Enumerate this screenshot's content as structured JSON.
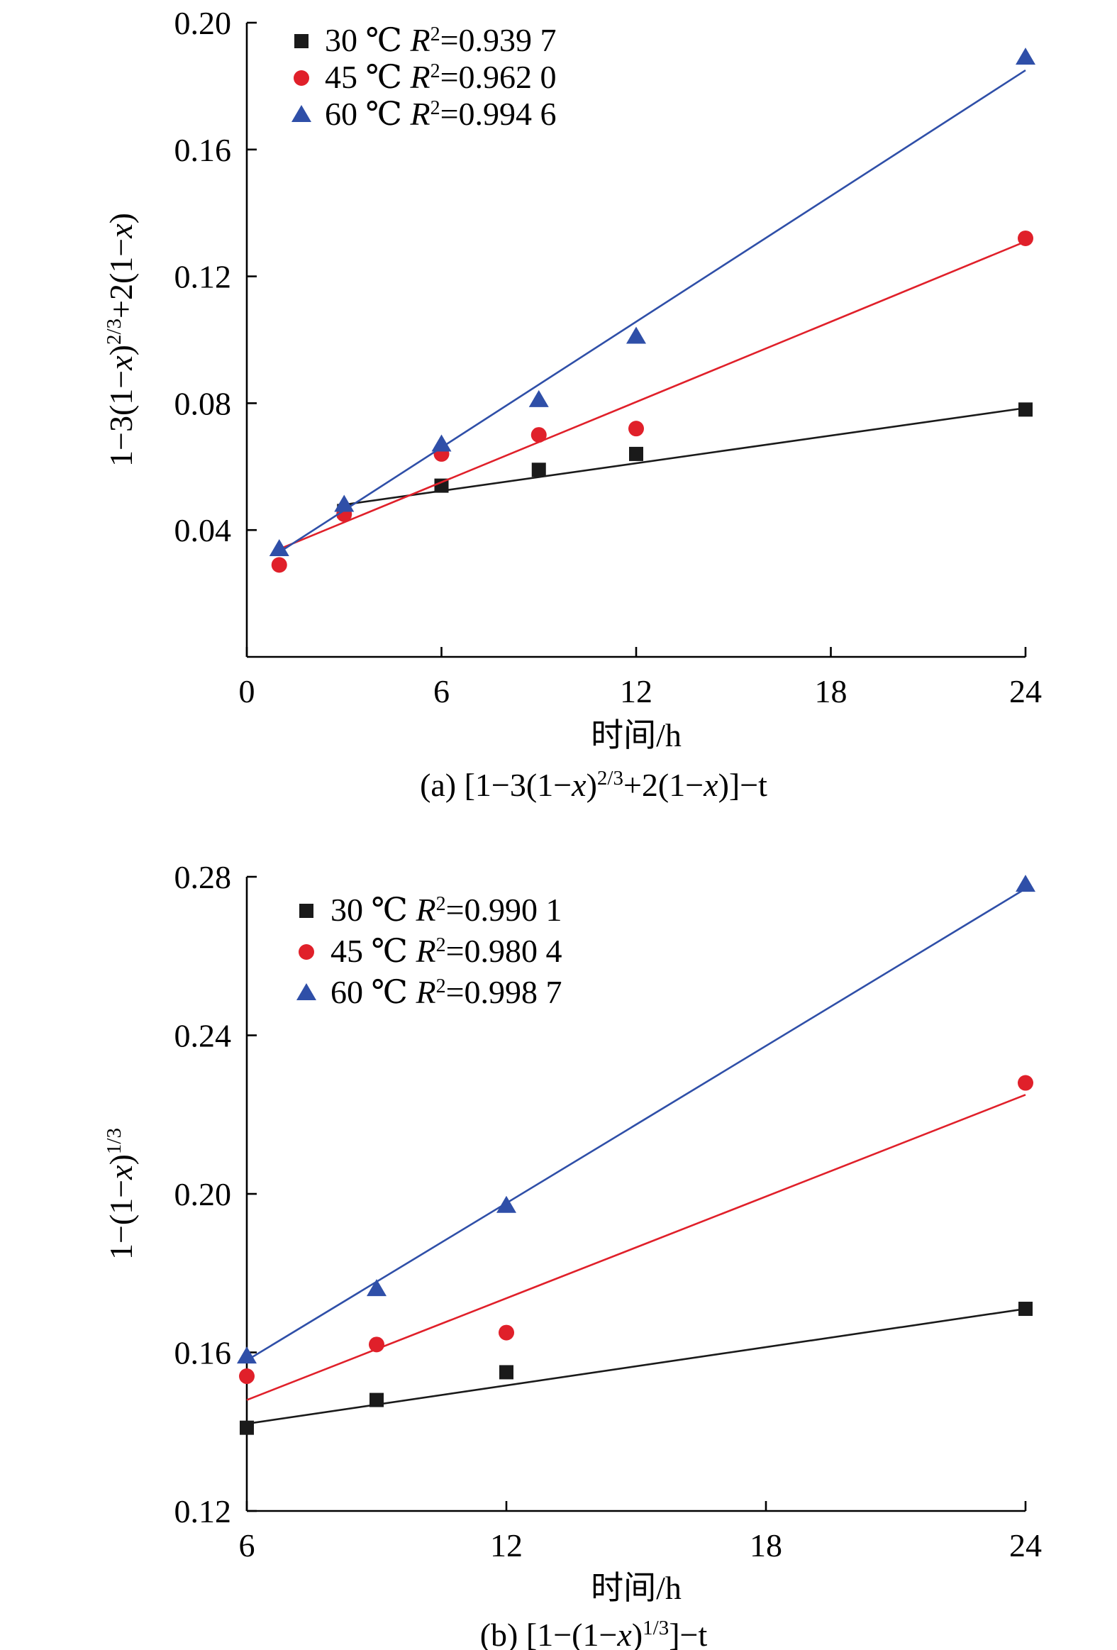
{
  "chart_data": [
    {
      "type": "scatter",
      "panel_label": "(a)",
      "title_parts": [
        "(a) [1−3(1−",
        "x",
        ")",
        "2/3",
        "+2(1−",
        "x",
        ")]−t"
      ],
      "xlabel": "时间/h",
      "ylabel_parts": [
        "1−3(1−",
        "x",
        ")",
        "2/3",
        "+2(1−",
        "x",
        ")"
      ],
      "xlim": [
        0,
        24
      ],
      "ylim": [
        0,
        0.2
      ],
      "xticks": [
        0,
        6,
        12,
        18,
        24
      ],
      "xtick_labels": [
        "0",
        "6",
        "12",
        "18",
        "24"
      ],
      "yticks": [
        0.04,
        0.08,
        0.12,
        0.16,
        0.2
      ],
      "ytick_labels": [
        "0.04",
        "0.08",
        "0.12",
        "0.16",
        "0.20"
      ],
      "legend_position": "top-left",
      "series": [
        {
          "name": "30 ℃",
          "r2_label": "=0.939 7",
          "marker": "square",
          "color": "#1a1a1a",
          "x": [
            3,
            6,
            9,
            12,
            24
          ],
          "y": [
            0.046,
            0.054,
            0.059,
            0.064,
            0.078
          ],
          "fit": {
            "x": [
              3,
              24
            ],
            "y": [
              0.048,
              0.0785
            ]
          }
        },
        {
          "name": "45 ℃",
          "r2_label": "=0.962 0",
          "marker": "circle",
          "color": "#e0202a",
          "x": [
            1,
            3,
            6,
            9,
            12,
            24
          ],
          "y": [
            0.029,
            0.045,
            0.064,
            0.07,
            0.072,
            0.132
          ],
          "fit": {
            "x": [
              1,
              24
            ],
            "y": [
              0.034,
              0.131
            ]
          }
        },
        {
          "name": "60 ℃",
          "r2_label": "=0.994 6",
          "marker": "triangle",
          "color": "#2f4fa8",
          "x": [
            1,
            3,
            6,
            9,
            12,
            24
          ],
          "y": [
            0.034,
            0.048,
            0.067,
            0.081,
            0.101,
            0.189
          ],
          "fit": {
            "x": [
              1,
              24
            ],
            "y": [
              0.033,
              0.185
            ]
          }
        }
      ]
    },
    {
      "type": "scatter",
      "panel_label": "(b)",
      "title_parts": [
        "(b) [1−(1−",
        "x",
        ")",
        "1/3",
        "]−t"
      ],
      "xlabel": "时间/h",
      "ylabel_parts": [
        "1−(1−",
        "x",
        ")",
        "1/3"
      ],
      "xlim": [
        6,
        24
      ],
      "ylim": [
        0.12,
        0.28
      ],
      "xticks": [
        6,
        12,
        18,
        24
      ],
      "xtick_labels": [
        "6",
        "12",
        "18",
        "24"
      ],
      "yticks": [
        0.12,
        0.16,
        0.2,
        0.24,
        0.28
      ],
      "ytick_labels": [
        "0.12",
        "0.16",
        "0.20",
        "0.24",
        "0.28"
      ],
      "legend_position": "top-left",
      "series": [
        {
          "name": "30 ℃",
          "r2_label": "=0.990 1",
          "marker": "square",
          "color": "#1a1a1a",
          "x": [
            6,
            9,
            12,
            24
          ],
          "y": [
            0.141,
            0.148,
            0.155,
            0.171
          ],
          "fit": {
            "x": [
              6,
              24
            ],
            "y": [
              0.142,
              0.171
            ]
          }
        },
        {
          "name": "45 ℃",
          "r2_label": "=0.980 4",
          "marker": "circle",
          "color": "#e0202a",
          "x": [
            6,
            9,
            12,
            24
          ],
          "y": [
            0.154,
            0.162,
            0.165,
            0.228
          ],
          "fit": {
            "x": [
              6,
              24
            ],
            "y": [
              0.148,
              0.225
            ]
          }
        },
        {
          "name": "60 ℃",
          "r2_label": "=0.998 7",
          "marker": "triangle",
          "color": "#2f4fa8",
          "x": [
            6,
            9,
            12,
            24
          ],
          "y": [
            0.159,
            0.176,
            0.197,
            0.278
          ],
          "fit": {
            "x": [
              6,
              24
            ],
            "y": [
              0.158,
              0.277
            ]
          }
        }
      ]
    }
  ]
}
